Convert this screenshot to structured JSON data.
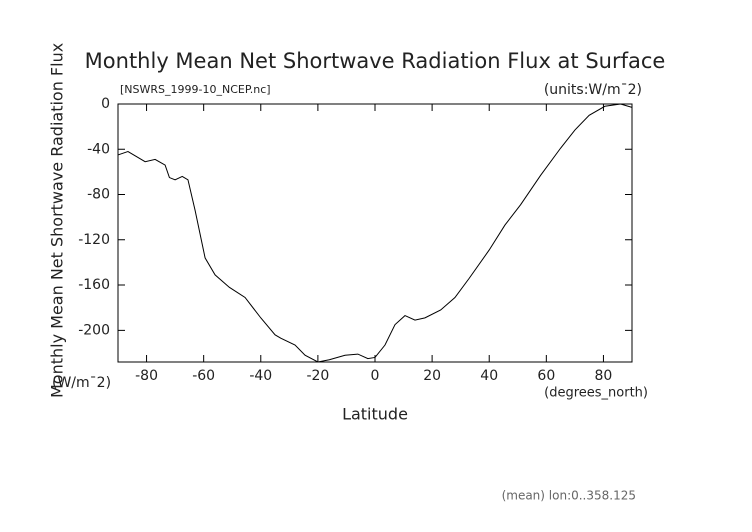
{
  "chart_data": {
    "type": "line",
    "title": "Monthly Mean Net Shortwave Radiation Flux at Surface",
    "subtitle": "[NSWRS_1999-10_NCEP.nc]",
    "units_label": "(units:W/m¯2)",
    "y_label": "Monthly Mean Net Shortwave Radiation Flux",
    "y_units": "(W/m¯2)",
    "x_label": "Latitude",
    "x_units": "(degrees_north)",
    "footnote": "(mean) lon:0..358.125",
    "x": [
      -90,
      -86.5,
      -80.5,
      -77,
      -73.5,
      -72,
      -70,
      -67.5,
      -65.5,
      -63,
      -59.5,
      -56,
      -51,
      -45.5,
      -40,
      -35,
      -33,
      -28,
      -24.5,
      -20,
      -16,
      -10.5,
      -6,
      -2.5,
      0,
      3.5,
      7,
      10.5,
      14,
      17.5,
      23,
      28,
      33,
      40,
      45.5,
      51,
      58,
      65,
      70,
      75,
      80.5,
      86,
      90
    ],
    "series": [
      {
        "color": "#000000",
        "values": [
          -45,
          -42,
          -51,
          -49,
          -54,
          -65,
          -67,
          -64,
          -67,
          -94,
          -136,
          -151,
          -162,
          -171,
          -189,
          -204,
          -207,
          -213,
          -222,
          -228,
          -226,
          -222,
          -221,
          -225,
          -224,
          -213,
          -195,
          -187,
          -191,
          -189,
          -182,
          -171,
          -154,
          -129,
          -107,
          -89,
          -63,
          -39,
          -23,
          -10,
          -2,
          0,
          -3
        ]
      }
    ],
    "xlim": [
      -90,
      90
    ],
    "xticks": [
      -80,
      -60,
      -40,
      -20,
      0,
      20,
      40,
      60,
      80
    ],
    "ylim": [
      -228,
      0
    ],
    "yticks": [
      0,
      -40,
      -80,
      -120,
      -160,
      -200
    ]
  }
}
